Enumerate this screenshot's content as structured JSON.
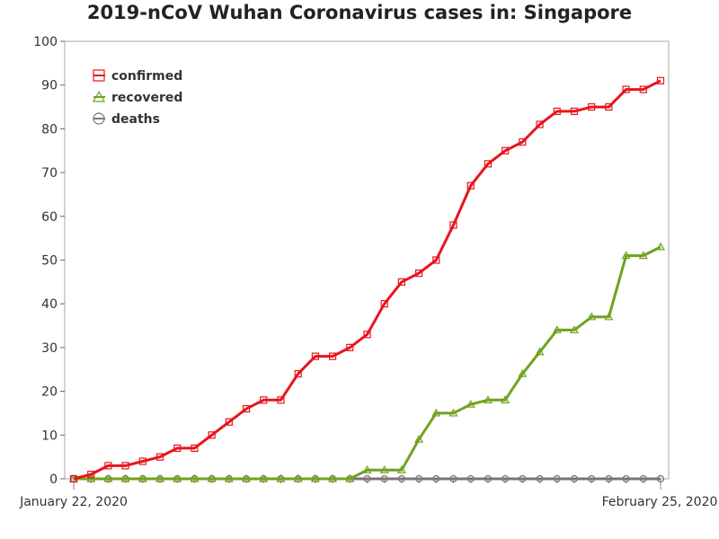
{
  "chart_data": {
    "type": "line",
    "title": "2019-nCoV Wuhan Coronavirus cases in: Singapore",
    "xlabel": "",
    "ylabel": "",
    "x_start_label": "January 22, 2020",
    "x_end_label": "February 25, 2020",
    "x": [
      "2020-01-22",
      "2020-01-23",
      "2020-01-24",
      "2020-01-25",
      "2020-01-26",
      "2020-01-27",
      "2020-01-28",
      "2020-01-29",
      "2020-01-30",
      "2020-01-31",
      "2020-02-01",
      "2020-02-02",
      "2020-02-03",
      "2020-02-04",
      "2020-02-05",
      "2020-02-06",
      "2020-02-07",
      "2020-02-08",
      "2020-02-09",
      "2020-02-10",
      "2020-02-11",
      "2020-02-12",
      "2020-02-13",
      "2020-02-14",
      "2020-02-15",
      "2020-02-16",
      "2020-02-17",
      "2020-02-18",
      "2020-02-19",
      "2020-02-20",
      "2020-02-21",
      "2020-02-22",
      "2020-02-23",
      "2020-02-24",
      "2020-02-25"
    ],
    "ylim": [
      0,
      100
    ],
    "yticks": [
      0,
      10,
      20,
      30,
      40,
      50,
      60,
      70,
      80,
      90,
      100
    ],
    "grid": false,
    "legend_position": "top-left",
    "series": [
      {
        "name": "confirmed",
        "color": "#e8141c",
        "marker": "square",
        "values": [
          0,
          1,
          3,
          3,
          4,
          5,
          7,
          7,
          10,
          13,
          16,
          18,
          18,
          24,
          28,
          28,
          30,
          33,
          40,
          45,
          47,
          50,
          58,
          67,
          72,
          75,
          77,
          81,
          84,
          84,
          85,
          85,
          89,
          89,
          91
        ]
      },
      {
        "name": "recovered",
        "color": "#6fa31e",
        "marker": "triangle",
        "values": [
          0,
          0,
          0,
          0,
          0,
          0,
          0,
          0,
          0,
          0,
          0,
          0,
          0,
          0,
          0,
          0,
          0,
          2,
          2,
          2,
          9,
          15,
          15,
          17,
          18,
          18,
          24,
          29,
          34,
          34,
          37,
          37,
          51,
          51,
          53
        ]
      },
      {
        "name": "deaths",
        "color": "#777777",
        "marker": "circle",
        "values": [
          0,
          0,
          0,
          0,
          0,
          0,
          0,
          0,
          0,
          0,
          0,
          0,
          0,
          0,
          0,
          0,
          0,
          0,
          0,
          0,
          0,
          0,
          0,
          0,
          0,
          0,
          0,
          0,
          0,
          0,
          0,
          0,
          0,
          0,
          0
        ]
      }
    ]
  }
}
